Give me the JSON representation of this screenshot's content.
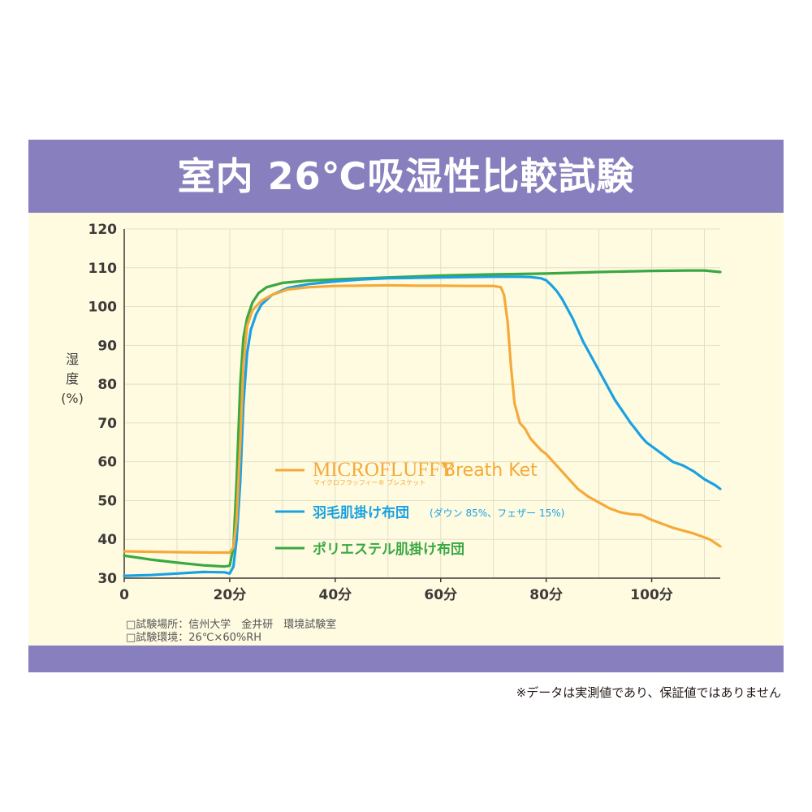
{
  "title": "室内 26℃吸湿性比較試験",
  "colors": {
    "band": "#877fbe",
    "panel": "#fefbe0",
    "orange": "#f6a93b",
    "blue": "#1ba1e2",
    "green": "#3aa843"
  },
  "chart_data": {
    "type": "line",
    "xlim": [
      0,
      113
    ],
    "ylim": [
      30,
      120
    ],
    "xticks": [
      "0",
      "20分",
      "40分",
      "60分",
      "80分",
      "100分"
    ],
    "yticks": [
      "30",
      "40",
      "50",
      "60",
      "70",
      "80",
      "90",
      "100",
      "110",
      "120"
    ],
    "ylabel_lines": [
      "湿",
      "度",
      "(%)"
    ],
    "grid": true,
    "legend_position": "center",
    "series": [
      {
        "name": "MICROFLUFFY® Breath Ket",
        "name_main": "MICROFLUFFY",
        "name_reg": "®",
        "name_rest": " Breath Ket",
        "name_sub": "マイクロフラッフィー® ブレスケット",
        "color": "#f6a93b",
        "points": [
          [
            0,
            36.9
          ],
          [
            10,
            36.7
          ],
          [
            18,
            36.6
          ],
          [
            20,
            36.6
          ],
          [
            20.7,
            38
          ],
          [
            21.3,
            45
          ],
          [
            22,
            65
          ],
          [
            22.6,
            85
          ],
          [
            23.3,
            95
          ],
          [
            24.3,
            99
          ],
          [
            26,
            101.5
          ],
          [
            28,
            103
          ],
          [
            31,
            104.4
          ],
          [
            35,
            105
          ],
          [
            40,
            105.3
          ],
          [
            50,
            105.5
          ],
          [
            55,
            105.4
          ],
          [
            60,
            105.4
          ],
          [
            65,
            105.3
          ],
          [
            70,
            105.3
          ],
          [
            71.4,
            105
          ],
          [
            72,
            103
          ],
          [
            72.7,
            96
          ],
          [
            73.3,
            85
          ],
          [
            74,
            75
          ],
          [
            75,
            70
          ],
          [
            76,
            68.5
          ],
          [
            77,
            66
          ],
          [
            78,
            64.5
          ],
          [
            79,
            63
          ],
          [
            80,
            62
          ],
          [
            81,
            60.5
          ],
          [
            82,
            59
          ],
          [
            83,
            57.5
          ],
          [
            84,
            56
          ],
          [
            85,
            54.5
          ],
          [
            86,
            53
          ],
          [
            87,
            52
          ],
          [
            88,
            51
          ],
          [
            90,
            49.5
          ],
          [
            92,
            48
          ],
          [
            94,
            47
          ],
          [
            96,
            46.5
          ],
          [
            98,
            46.3
          ],
          [
            100,
            45
          ],
          [
            104,
            43
          ],
          [
            108,
            41.5
          ],
          [
            111,
            40
          ],
          [
            113,
            38.2
          ]
        ]
      },
      {
        "name": "羽毛肌掛け布団",
        "name_sub": "(ダウン 85%、フェザー 15%)",
        "color": "#1ba1e2",
        "points": [
          [
            0,
            30.6
          ],
          [
            5,
            30.8
          ],
          [
            10,
            31.2
          ],
          [
            15,
            31.6
          ],
          [
            19,
            31.5
          ],
          [
            20,
            31.2
          ],
          [
            20.7,
            33
          ],
          [
            21.3,
            40
          ],
          [
            22,
            55
          ],
          [
            22.6,
            75
          ],
          [
            23.3,
            88
          ],
          [
            24,
            94
          ],
          [
            25,
            98
          ],
          [
            26,
            100.5
          ],
          [
            28,
            103
          ],
          [
            31,
            104.8
          ],
          [
            35,
            105.8
          ],
          [
            40,
            106.5
          ],
          [
            45,
            107
          ],
          [
            50,
            107.3
          ],
          [
            55,
            107.4
          ],
          [
            60,
            107.5
          ],
          [
            65,
            107.6
          ],
          [
            70,
            107.7
          ],
          [
            75,
            107.7
          ],
          [
            77,
            107.6
          ],
          [
            79,
            107.3
          ],
          [
            80,
            106.8
          ],
          [
            81,
            105.5
          ],
          [
            82,
            104
          ],
          [
            83,
            102
          ],
          [
            84,
            99.5
          ],
          [
            85,
            97
          ],
          [
            86,
            94
          ],
          [
            87,
            91
          ],
          [
            88,
            88.5
          ],
          [
            89,
            86
          ],
          [
            90,
            83.5
          ],
          [
            91,
            81
          ],
          [
            92,
            78.5
          ],
          [
            93,
            76
          ],
          [
            94,
            74
          ],
          [
            95,
            72
          ],
          [
            96,
            70
          ],
          [
            97,
            68.3
          ],
          [
            98,
            66.5
          ],
          [
            99,
            65
          ],
          [
            100,
            64
          ],
          [
            102,
            62
          ],
          [
            104,
            60
          ],
          [
            106,
            59
          ],
          [
            108,
            57.5
          ],
          [
            110,
            55.5
          ],
          [
            112,
            54
          ],
          [
            113,
            53
          ]
        ]
      },
      {
        "name": "ポリエステル肌掛け布団",
        "color": "#3aa843",
        "points": [
          [
            0,
            35.8
          ],
          [
            5,
            34.8
          ],
          [
            10,
            34
          ],
          [
            15,
            33.3
          ],
          [
            19,
            33
          ],
          [
            20,
            33.2
          ],
          [
            20.7,
            38
          ],
          [
            21.3,
            55
          ],
          [
            22,
            80
          ],
          [
            22.6,
            92
          ],
          [
            23.3,
            97
          ],
          [
            24.3,
            101
          ],
          [
            25.5,
            103.5
          ],
          [
            27,
            105
          ],
          [
            30,
            106.1
          ],
          [
            35,
            106.7
          ],
          [
            40,
            107
          ],
          [
            50,
            107.5
          ],
          [
            60,
            108
          ],
          [
            70,
            108.3
          ],
          [
            80,
            108.5
          ],
          [
            90,
            108.9
          ],
          [
            100,
            109.2
          ],
          [
            107,
            109.3
          ],
          [
            110,
            109.3
          ],
          [
            113,
            108.9
          ]
        ]
      }
    ]
  },
  "notes": [
    "□試験場所：信州大学　金井研　環境試験室",
    "□試験環境：26℃×60%RH"
  ],
  "disclaimer": "※データは実測値であり、保証値ではありません"
}
